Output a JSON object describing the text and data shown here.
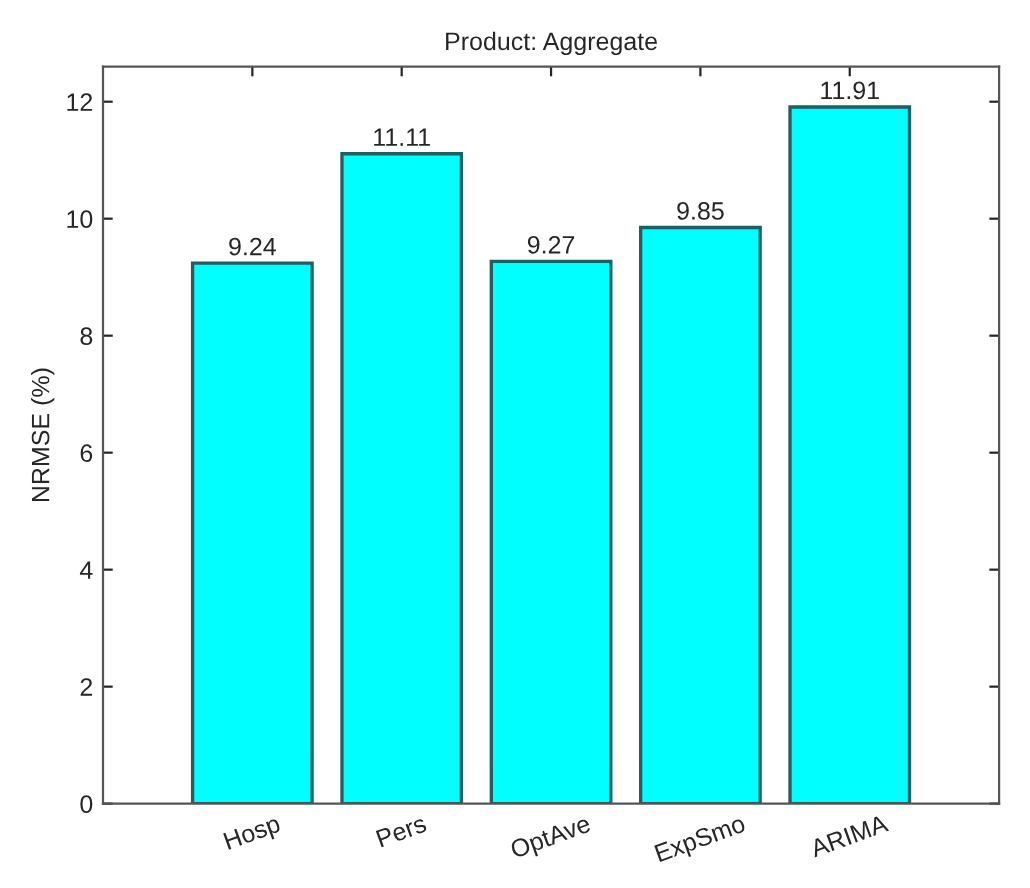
{
  "chart_data": {
    "type": "bar",
    "title": "Product: Aggregate",
    "ylabel": "NRMSE (%)",
    "categories": [
      "Hosp",
      "Pers",
      "OptAve",
      "ExpSmo",
      "ARIMA"
    ],
    "values": [
      9.24,
      11.11,
      9.27,
      9.85,
      11.91
    ],
    "color": "#00ffff",
    "ylim": [
      0,
      12.6
    ],
    "yticks": [
      0,
      2,
      4,
      6,
      8,
      10,
      12
    ],
    "data_labels": true,
    "grid": false,
    "legend": false
  }
}
